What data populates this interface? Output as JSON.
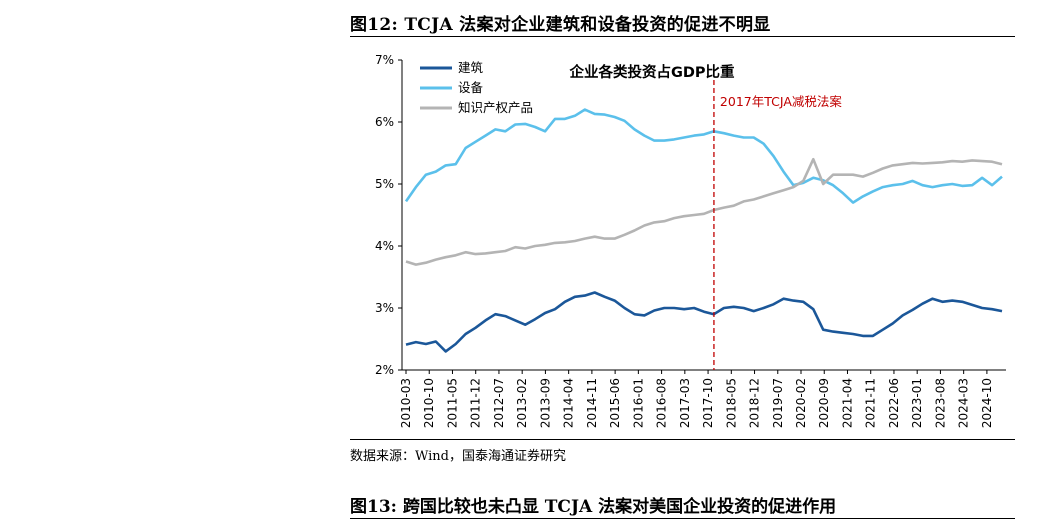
{
  "figure_title": "图12:  TCJA 法案对企业建筑和设备投资的促进不明显",
  "source": "数据来源：Wind，国泰海通证券研究",
  "next_figure_title": "图13:  跨国比较也未凸显 TCJA 法案对美国企业投资的促进作用",
  "chart_data": {
    "type": "line",
    "title": "企业各类投资占GDP比重",
    "ylim": [
      2,
      7
    ],
    "yticks": [
      "2%",
      "3%",
      "4%",
      "5%",
      "6%",
      "7%"
    ],
    "y_tick_values": [
      2,
      3,
      4,
      5,
      6,
      7
    ],
    "x_tick_labels": [
      "2010-03",
      "2010-10",
      "2011-05",
      "2011-12",
      "2012-07",
      "2013-02",
      "2013-09",
      "2014-04",
      "2014-11",
      "2015-06",
      "2016-01",
      "2016-08",
      "2017-03",
      "2017-10",
      "2018-05",
      "2018-12",
      "2019-07",
      "2020-02",
      "2020-09",
      "2021-04",
      "2021-11",
      "2022-06",
      "2023-01",
      "2023-08",
      "2024-03",
      "2024-10"
    ],
    "annotation": {
      "text": "2017年TCJA减税法案",
      "x_quarter_index": 31
    },
    "legend_position": "top-left",
    "grid": false,
    "series": [
      {
        "name": "建筑",
        "color": "#1b5799",
        "values": [
          2.41,
          2.45,
          2.42,
          2.46,
          2.3,
          2.42,
          2.58,
          2.68,
          2.8,
          2.9,
          2.87,
          2.8,
          2.73,
          2.82,
          2.92,
          2.98,
          3.1,
          3.18,
          3.2,
          3.25,
          3.18,
          3.12,
          3.0,
          2.9,
          2.88,
          2.96,
          3.0,
          3.0,
          2.98,
          3.0,
          2.94,
          2.9,
          3.0,
          3.02,
          3.0,
          2.95,
          3.0,
          3.06,
          3.15,
          3.12,
          3.1,
          2.98,
          2.65,
          2.62,
          2.6,
          2.58,
          2.55,
          2.55,
          2.65,
          2.75,
          2.88,
          2.97,
          3.07,
          3.15,
          3.1,
          3.12,
          3.1,
          3.05,
          3.0,
          2.98,
          2.95
        ]
      },
      {
        "name": "设备",
        "color": "#5bc0eb",
        "values": [
          4.72,
          4.95,
          5.15,
          5.2,
          5.3,
          5.32,
          5.58,
          5.68,
          5.78,
          5.88,
          5.85,
          5.96,
          5.97,
          5.92,
          5.85,
          6.05,
          6.05,
          6.1,
          6.2,
          6.13,
          6.12,
          6.08,
          6.02,
          5.88,
          5.78,
          5.7,
          5.7,
          5.72,
          5.75,
          5.78,
          5.8,
          5.85,
          5.82,
          5.78,
          5.75,
          5.75,
          5.65,
          5.45,
          5.2,
          4.98,
          5.02,
          5.1,
          5.06,
          4.98,
          4.85,
          4.7,
          4.8,
          4.88,
          4.95,
          4.98,
          5.0,
          5.05,
          4.98,
          4.95,
          4.98,
          5.0,
          4.97,
          4.98,
          5.1,
          4.98,
          5.12
        ]
      },
      {
        "name": "知识产权产品",
        "color": "#b4b4b4",
        "values": [
          3.75,
          3.7,
          3.73,
          3.78,
          3.82,
          3.85,
          3.9,
          3.87,
          3.88,
          3.9,
          3.92,
          3.98,
          3.96,
          4.0,
          4.02,
          4.05,
          4.06,
          4.08,
          4.12,
          4.15,
          4.12,
          4.12,
          4.18,
          4.25,
          4.33,
          4.38,
          4.4,
          4.45,
          4.48,
          4.5,
          4.52,
          4.58,
          4.62,
          4.65,
          4.72,
          4.75,
          4.8,
          4.85,
          4.9,
          4.95,
          5.05,
          5.4,
          5.0,
          5.15,
          5.15,
          5.15,
          5.12,
          5.18,
          5.25,
          5.3,
          5.32,
          5.34,
          5.33,
          5.34,
          5.35,
          5.37,
          5.36,
          5.38,
          5.37,
          5.36,
          5.32
        ]
      }
    ]
  }
}
